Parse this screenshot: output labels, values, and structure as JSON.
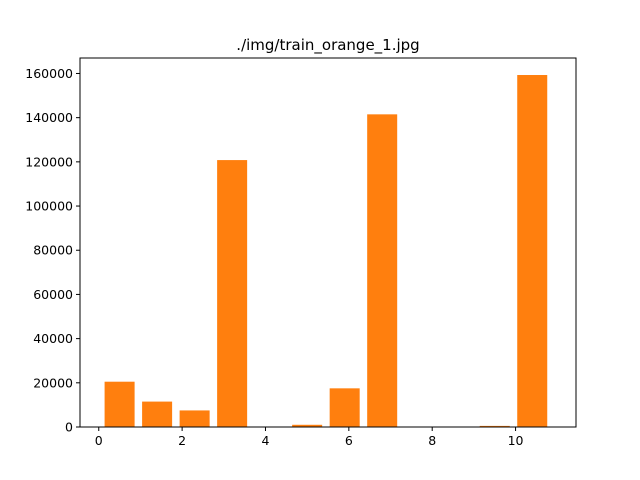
{
  "chart_data": {
    "type": "bar",
    "title": "./img/train_orange_1.jpg",
    "xlabel": "",
    "ylabel": "",
    "x": [
      0.5,
      1.4,
      2.3,
      3.2,
      4.1,
      5.0,
      5.9,
      6.8,
      7.7,
      8.6,
      9.5,
      10.4
    ],
    "values": [
      20500,
      11500,
      7500,
      120800,
      0,
      1000,
      17500,
      141500,
      0,
      0,
      500,
      159300
    ],
    "bar_width": 0.72,
    "xlim": [
      -0.45,
      11.45
    ],
    "ylim": [
      0,
      167000
    ],
    "xticks": [
      0,
      2,
      4,
      6,
      8,
      10
    ],
    "xtick_labels": [
      "0",
      "2",
      "4",
      "6",
      "8",
      "10"
    ],
    "yticks": [
      0,
      20000,
      40000,
      60000,
      80000,
      100000,
      120000,
      140000,
      160000
    ],
    "ytick_labels": [
      "0",
      "20000",
      "40000",
      "60000",
      "80000",
      "100000",
      "120000",
      "140000",
      "160000"
    ],
    "bar_color": "#ff7f0e",
    "grid": false,
    "legend": "none"
  }
}
